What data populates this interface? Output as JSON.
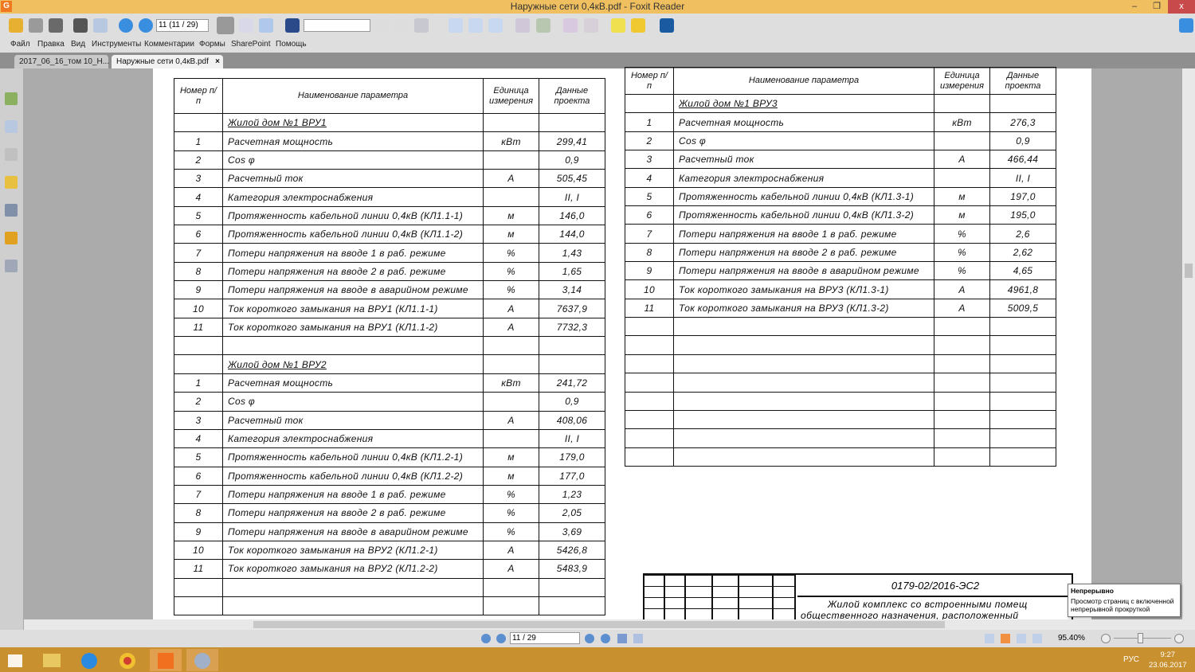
{
  "window": {
    "title": "Наружные сети 0,4кВ.pdf - Foxit Reader",
    "minimize": "–",
    "restore": "❐",
    "close": "x"
  },
  "toolbar": {
    "page_field": "11 (11 / 29)",
    "find_placeholder": ""
  },
  "menu": [
    "Файл",
    "Правка",
    "Вид",
    "Инструменты",
    "Комментарии",
    "Формы",
    "SharePoint",
    "Помощь"
  ],
  "tabs": [
    {
      "label": "2017_06_16_том 10_Н..."
    },
    {
      "label": "Наружные сети 0,4кВ.pdf",
      "close": "×"
    }
  ],
  "table_header": {
    "num": "Номер п/п",
    "name": "Наименование параметра",
    "unit": "Единица измерения",
    "value": "Данные проекта"
  },
  "left_table": [
    {
      "section": "Жилой дом №1  ВРУ1"
    },
    {
      "n": "1",
      "name": "Расчетная мощность",
      "unit": "кВт",
      "value": "299,41"
    },
    {
      "n": "2",
      "name": "Cos φ",
      "unit": "",
      "value": "0,9"
    },
    {
      "n": "3",
      "name": "Расчетный ток",
      "unit": "А",
      "value": "505,45"
    },
    {
      "n": "4",
      "name": "Категория электроснабжения",
      "unit": "",
      "value": "II,  I"
    },
    {
      "n": "5",
      "name": "Протяженность кабельной линии 0,4кВ (КЛ1.1-1)",
      "unit": "м",
      "value": "146,0"
    },
    {
      "n": "6",
      "name": "Протяженность кабельной линии 0,4кВ (КЛ1.1-2)",
      "unit": "м",
      "value": "144,0"
    },
    {
      "n": "7",
      "name": "Потери напряжения на вводе 1  в раб. режиме",
      "unit": "%",
      "value": "1,43"
    },
    {
      "n": "8",
      "name": "Потери напряжения на вводе 2  в раб. режиме",
      "unit": "%",
      "value": "1,65"
    },
    {
      "n": "9",
      "name": "Потери напряжения на вводе в аварийном режиме",
      "unit": "%",
      "value": "3,14"
    },
    {
      "n": "10",
      "name": "Ток короткого замыкания на ВРУ1 (КЛ1.1-1)",
      "unit": "А",
      "value": "7637,9"
    },
    {
      "n": "11",
      "name": "Ток короткого замыкания на ВРУ1 (КЛ1.1-2)",
      "unit": "А",
      "value": "7732,3"
    },
    {},
    {
      "section": "Жилой дом №1  ВРУ2"
    },
    {
      "n": "1",
      "name": "Расчетная мощность",
      "unit": "кВт",
      "value": "241,72"
    },
    {
      "n": "2",
      "name": "Cos φ",
      "unit": "",
      "value": "0,9"
    },
    {
      "n": "3",
      "name": "Расчетный ток",
      "unit": "А",
      "value": "408,06"
    },
    {
      "n": "4",
      "name": "Категория электроснабжения",
      "unit": "",
      "value": "II,  I"
    },
    {
      "n": "5",
      "name": "Протяженность кабельной линии 0,4кВ (КЛ1.2-1)",
      "unit": "м",
      "value": "179,0"
    },
    {
      "n": "6",
      "name": "Протяженность кабельной линии 0,4кВ (КЛ1.2-2)",
      "unit": "м",
      "value": "177,0"
    },
    {
      "n": "7",
      "name": "Потери напряжения на вводе 1  в раб. режиме",
      "unit": "%",
      "value": "1,23"
    },
    {
      "n": "8",
      "name": "Потери напряжения на вводе 2  в раб. режиме",
      "unit": "%",
      "value": "2,05"
    },
    {
      "n": "9",
      "name": "Потери напряжения на вводе в аварийном режиме",
      "unit": "%",
      "value": "3,69"
    },
    {
      "n": "10",
      "name": "Ток короткого замыкания на ВРУ2 (КЛ1.2-1)",
      "unit": "А",
      "value": "5426,8"
    },
    {
      "n": "11",
      "name": "Ток короткого замыкания на ВРУ2 (КЛ1.2-2)",
      "unit": "А",
      "value": "5483,9"
    },
    {},
    {}
  ],
  "right_table": [
    {
      "section": "Жилой дом №1  ВРУ3"
    },
    {
      "n": "1",
      "name": "Расчетная мощность",
      "unit": "кВт",
      "value": "276,3"
    },
    {
      "n": "2",
      "name": "Cos φ",
      "unit": "",
      "value": "0,9"
    },
    {
      "n": "3",
      "name": "Расчетный ток",
      "unit": "А",
      "value": "466,44"
    },
    {
      "n": "4",
      "name": "Категория электроснабжения",
      "unit": "",
      "value": "II,  I"
    },
    {
      "n": "5",
      "name": "Протяженность кабельной линии 0,4кВ (КЛ1.3-1)",
      "unit": "м",
      "value": "197,0"
    },
    {
      "n": "6",
      "name": "Протяженность кабельной линии 0,4кВ (КЛ1.3-2)",
      "unit": "м",
      "value": "195,0"
    },
    {
      "n": "7",
      "name": "Потери напряжения на вводе 1  в раб. режиме",
      "unit": "%",
      "value": "2,6"
    },
    {
      "n": "8",
      "name": "Потери напряжения на вводе 2  в раб. режиме",
      "unit": "%",
      "value": "2,62"
    },
    {
      "n": "9",
      "name": "Потери напряжения на вводе в аварийном режиме",
      "unit": "%",
      "value": "4,65"
    },
    {
      "n": "10",
      "name": "Ток короткого замыкания на ВРУ3 (КЛ1.3-1)",
      "unit": "А",
      "value": "4961,8"
    },
    {
      "n": "11",
      "name": "Ток короткого замыкания на ВРУ3 (КЛ1.3-2)",
      "unit": "А",
      "value": "5009,5"
    },
    {},
    {},
    {},
    {},
    {},
    {},
    {},
    {}
  ],
  "title_block": {
    "doc_number": "0179-02/2016-ЭС2",
    "title_line1": "Жилой комплекс со встроенными помещ",
    "title_line2": "общественного назначения, расположенный"
  },
  "tooltip": {
    "title": "Непрерывно",
    "text": "Просмотр страниц с включенной непрерывной прокруткой"
  },
  "status": {
    "page_field": "11 / 29",
    "zoom": "95.40%"
  },
  "taskbar": {
    "lang": "РУС",
    "time": "9:27",
    "date": "23.06.2017"
  }
}
